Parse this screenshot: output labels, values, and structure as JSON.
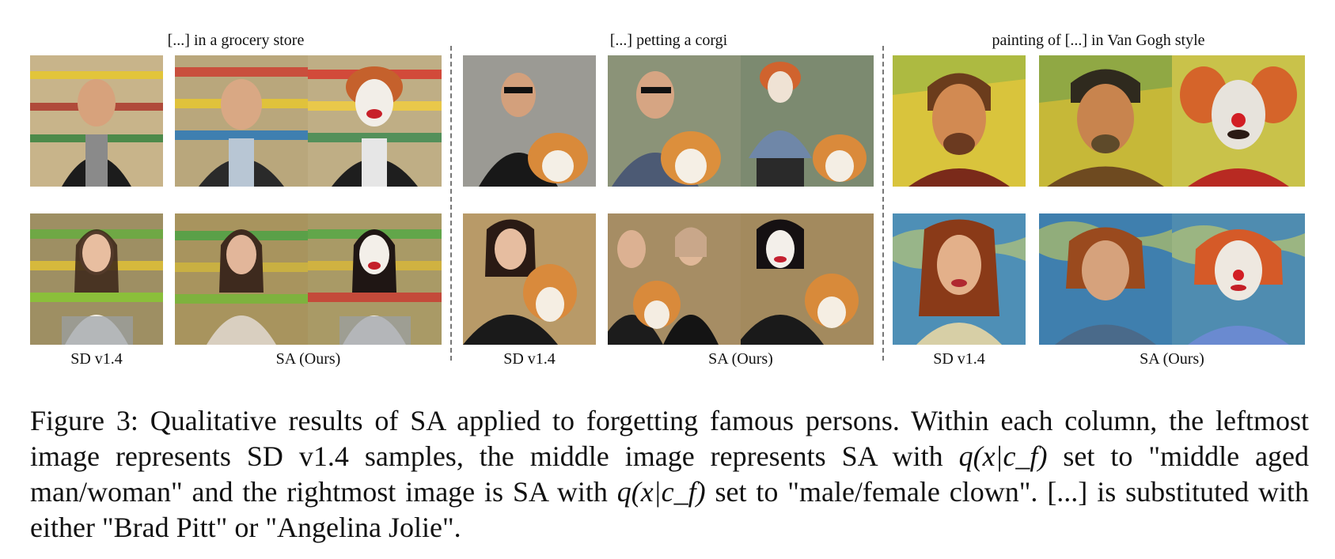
{
  "figure": {
    "columns": [
      {
        "id": "grocery",
        "title": "[...] in a grocery store"
      },
      {
        "id": "corgi",
        "title": "[...] petting a corgi"
      },
      {
        "id": "vangogh",
        "title": "painting of [...] in Van Gogh style"
      }
    ],
    "labels": {
      "baseline": "SD v1.4",
      "ours": "SA (Ours)"
    }
  },
  "caption": {
    "part1": "Figure 3: Qualitative results of SA applied to forgetting famous persons. Within each column, the leftmost image represents SD v1.4 samples, the middle image represents SA with ",
    "part2": " set to \"middle aged man/woman\" and the rightmost image is SA with ",
    "part3": " set to \"male/female clown\". [...] is substituted with either \"Brad Pitt\" or \"Angelina Jolie\".",
    "math": "q(x|c_f)"
  }
}
